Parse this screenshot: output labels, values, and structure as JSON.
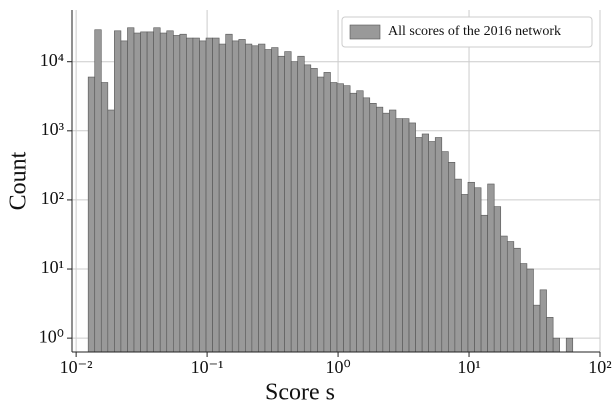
{
  "chart_data": {
    "type": "histogram",
    "xlabel": "Score s",
    "ylabel": "Count",
    "legend": "All scores of the 2016 network",
    "legend_loc": "upper right",
    "color": "#999999",
    "edgecolor": "#555555",
    "grid": true,
    "xscale": "log",
    "yscale": "log",
    "bins": [
      0.01236,
      0.01387,
      0.01556,
      0.01746,
      0.01959,
      0.02198,
      0.02466,
      0.02767,
      0.03105,
      0.03483,
      0.03908,
      0.04385,
      0.0492,
      0.05521,
      0.06194,
      0.0695,
      0.07798,
      0.0875,
      0.09817,
      0.1102,
      0.1236,
      0.1387,
      0.1556,
      0.1746,
      0.1959,
      0.2198,
      0.2466,
      0.2767,
      0.3105,
      0.3483,
      0.3908,
      0.4385,
      0.492,
      0.5521,
      0.6194,
      0.695,
      0.7798,
      0.875,
      0.9817,
      1.102,
      1.236,
      1.387,
      1.556,
      1.746,
      1.959,
      2.198,
      2.466,
      2.767,
      3.105,
      3.483,
      3.908,
      4.385,
      4.92,
      5.521,
      6.194,
      6.95,
      7.798,
      8.75,
      9.817,
      11.02,
      12.36,
      13.87,
      15.56,
      17.46,
      19.59,
      21.98,
      24.66,
      27.67,
      31.05,
      34.83,
      39.08,
      43.85,
      49.2,
      55.21,
      61.94
    ],
    "values": [
      6000,
      29000,
      5000,
      2000,
      28000,
      20000,
      31000,
      26000,
      27000,
      27000,
      31000,
      26000,
      28000,
      24000,
      25000,
      22000,
      22000,
      20000,
      22000,
      22000,
      18000,
      25000,
      20000,
      21000,
      18000,
      17000,
      18000,
      15000,
      16000,
      12000,
      14000,
      10000,
      12000,
      9000,
      8000,
      6000,
      7000,
      5000,
      4800,
      4500,
      3500,
      3800,
      3000,
      2500,
      2200,
      1800,
      2000,
      1500,
      1500,
      1300,
      800,
      900,
      700,
      800,
      500,
      350,
      200,
      120,
      180,
      150,
      60,
      170,
      80,
      30,
      25,
      20,
      12,
      10,
      3,
      5,
      2,
      1,
      0,
      1
    ],
    "xlim": [
      0.0093,
      100
    ],
    "ylim": [
      0.63,
      56000
    ],
    "xticks": [
      {
        "value": 0.01,
        "label": "10⁻²"
      },
      {
        "value": 0.1,
        "label": "10⁻¹"
      },
      {
        "value": 1,
        "label": "10⁰"
      },
      {
        "value": 10,
        "label": "10¹"
      },
      {
        "value": 100,
        "label": "10²"
      }
    ],
    "yticks": [
      {
        "value": 1,
        "label": "10⁰"
      },
      {
        "value": 10,
        "label": "10¹"
      },
      {
        "value": 100,
        "label": "10²"
      },
      {
        "value": 1000,
        "label": "10³"
      },
      {
        "value": 10000,
        "label": "10⁴"
      }
    ]
  }
}
